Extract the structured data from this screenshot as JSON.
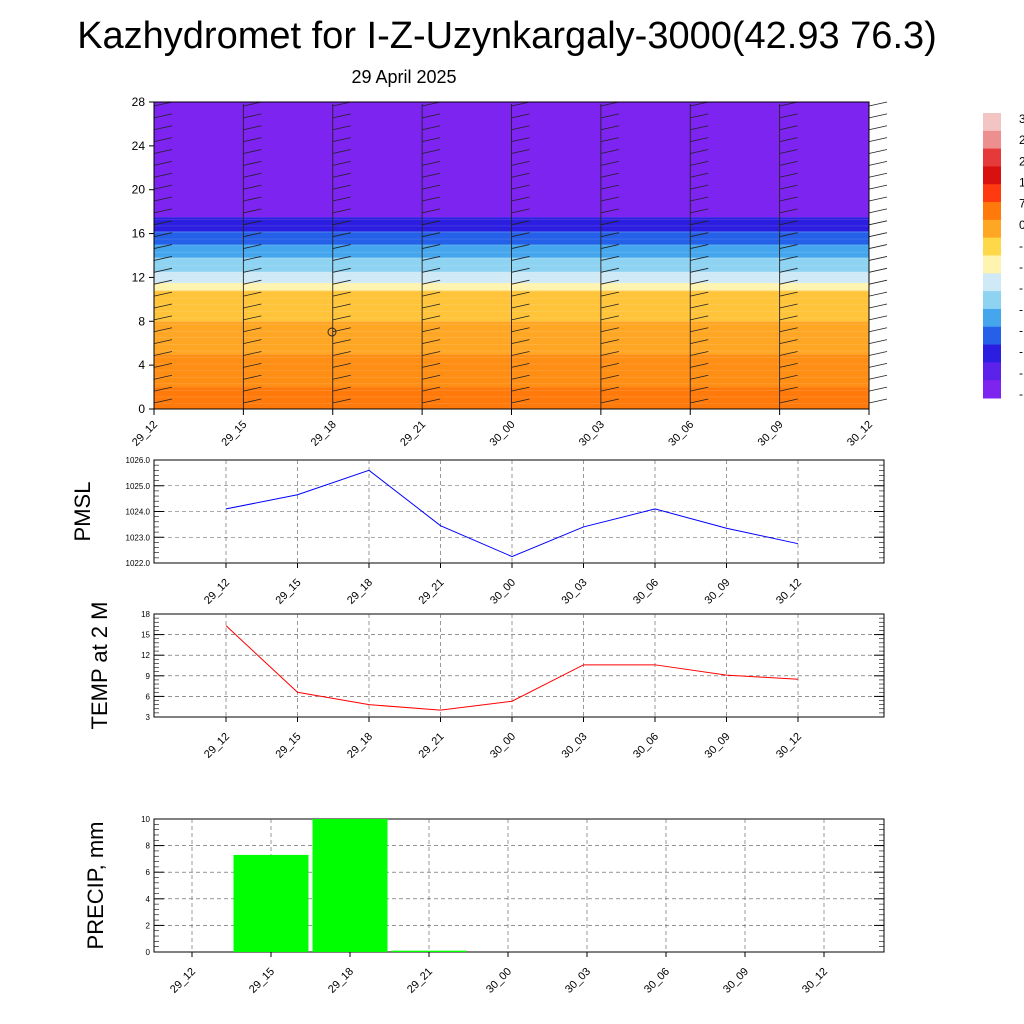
{
  "header": {
    "title": "Kazhydromet for I-Z-Uzynkargaly-3000(42.93 76.3)",
    "date": "29 April 2025"
  },
  "colorbar": {
    "labels": [
      "3",
      "2",
      "2",
      "1",
      "7",
      "0",
      "-",
      "-",
      "-",
      "-",
      "-",
      "-",
      "-",
      "-"
    ]
  },
  "chart_data": [
    {
      "type": "heatmap",
      "description_scalar": "temperature",
      "x_categories": [
        "29_12",
        "29_15",
        "29_18",
        "29_21",
        "30_00",
        "30_03",
        "30_06",
        "30_09",
        "30_12"
      ],
      "y_ticks": [
        "0",
        "4",
        "8",
        "12",
        "16",
        "20",
        "24",
        "28"
      ],
      "ylim": [
        0,
        28
      ],
      "bands": [
        {
          "from": 0,
          "to": 2,
          "color": "#ff7a0a"
        },
        {
          "from": 2,
          "to": 5,
          "color": "#ff8e14"
        },
        {
          "from": 5,
          "to": 8,
          "color": "#ffa624"
        },
        {
          "from": 8,
          "to": 10.8,
          "color": "#ffc43a"
        },
        {
          "from": 10.8,
          "to": 11.5,
          "color": "#fff3b0"
        },
        {
          "from": 11.5,
          "to": 12.5,
          "color": "#cfeaf6"
        },
        {
          "from": 12.5,
          "to": 13.8,
          "color": "#8fd3f2"
        },
        {
          "from": 13.8,
          "to": 15,
          "color": "#45a6ee"
        },
        {
          "from": 15,
          "to": 16.2,
          "color": "#2460e8"
        },
        {
          "from": 16.2,
          "to": 17.5,
          "color": "#2c1ee0"
        },
        {
          "from": 17.5,
          "to": 28,
          "color": "#7d24f0"
        }
      ],
      "wind_barb_columns": 9,
      "wind_barb_levels": 26
    },
    {
      "type": "line",
      "ylabel": "PMSL",
      "categories": [
        "29_12",
        "29_15",
        "29_18",
        "29_21",
        "30_00",
        "30_03",
        "30_06",
        "30_09",
        "30_12"
      ],
      "y_ticks": [
        "1022.0",
        "1023.0",
        "1024.0",
        "1025.0",
        "1026.0"
      ],
      "ylim": [
        1022,
        1026
      ],
      "series": [
        {
          "values": [
            1024.1,
            1024.65,
            1025.6,
            1023.45,
            1022.25,
            1023.4,
            1024.1,
            1023.35,
            1022.75
          ],
          "color": "#0000ff"
        }
      ],
      "grid": true
    },
    {
      "type": "line",
      "ylabel": "TEMP at 2 M",
      "categories": [
        "29_12",
        "29_15",
        "29_18",
        "29_21",
        "30_00",
        "30_03",
        "30_06",
        "30_09",
        "30_12"
      ],
      "y_ticks": [
        "3",
        "6",
        "9",
        "12",
        "15",
        "18"
      ],
      "ylim": [
        3,
        18
      ],
      "series": [
        {
          "values": [
            16.3,
            6.6,
            4.8,
            4.0,
            5.3,
            10.6,
            10.6,
            9.1,
            8.5
          ],
          "color": "#ff0000"
        }
      ],
      "grid": true
    },
    {
      "type": "bar",
      "ylabel": "PRECIP, mm",
      "categories": [
        "29_12",
        "29_15",
        "29_18",
        "29_21",
        "30_00",
        "30_03",
        "30_06",
        "30_09",
        "30_12"
      ],
      "y_ticks": [
        "0",
        "2",
        "4",
        "6",
        "8",
        "10"
      ],
      "ylim": [
        0,
        10
      ],
      "values": [
        0,
        7.3,
        10.0,
        0.1,
        0,
        0,
        0,
        0,
        0
      ],
      "color": "#00ff00",
      "grid": true
    }
  ]
}
